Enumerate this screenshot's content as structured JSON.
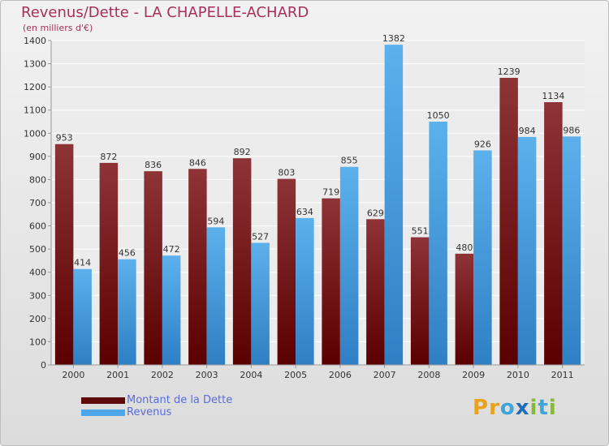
{
  "header": {
    "title": "Revenus/Dette - LA CHAPELLE-ACHARD",
    "subtitle": "(en milliers d'€)"
  },
  "chart_data": {
    "type": "bar",
    "title": "Revenus/Dette - LA CHAPELLE-ACHARD",
    "ylabel": "(en milliers d'€)",
    "categories": [
      "2000",
      "2001",
      "2002",
      "2003",
      "2004",
      "2005",
      "2006",
      "2007",
      "2008",
      "2009",
      "2010",
      "2011"
    ],
    "series": [
      {
        "name": "Montant de la Dette",
        "color": "#7a1f22",
        "values": [
          953,
          872,
          836,
          846,
          892,
          803,
          719,
          629,
          551,
          480,
          1239,
          1134
        ]
      },
      {
        "name": "Revenus",
        "color": "#4da6e8",
        "values": [
          414,
          456,
          472,
          594,
          527,
          634,
          855,
          1382,
          1050,
          926,
          984,
          986
        ]
      }
    ],
    "ylim": [
      0,
      1400
    ],
    "yticks": [
      0,
      100,
      200,
      300,
      400,
      500,
      600,
      700,
      800,
      900,
      1000,
      1100,
      1200,
      1300,
      1400
    ],
    "grid": true,
    "legend_position": "bottom-left"
  },
  "legend": {
    "items": [
      {
        "label": "Montant de la Dette",
        "color": "#5c0a0a"
      },
      {
        "label": "Revenus",
        "color": "#4da6e8"
      }
    ]
  },
  "logo": {
    "letters": [
      "P",
      "r",
      "o",
      "x",
      "i",
      "t",
      "i"
    ],
    "colors": [
      "#e9a21c",
      "#e9a21c",
      "#3da5d9",
      "#1f6fb5",
      "#86b83a",
      "#3da5d9",
      "#86b83a"
    ]
  }
}
